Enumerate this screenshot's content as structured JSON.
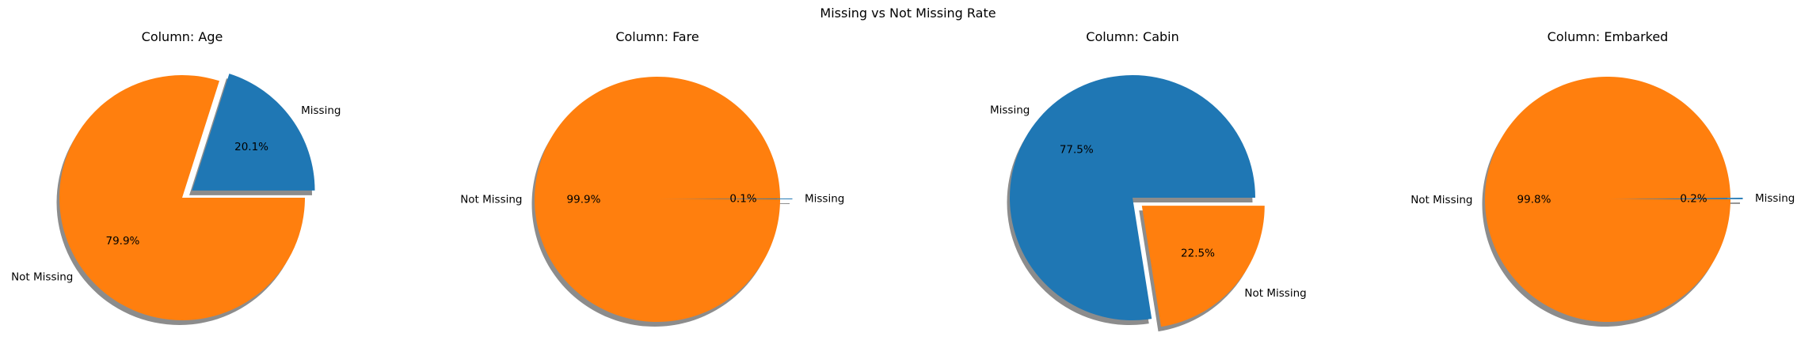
{
  "figure": {
    "title": "Missing vs Not Missing Rate"
  },
  "chart_data": [
    {
      "type": "pie",
      "title": "Column: Age",
      "labels": [
        "Missing",
        "Not Missing"
      ],
      "values": [
        20.1,
        79.9
      ],
      "autopct": [
        "20.1%",
        "79.9%"
      ],
      "colors": [
        "#1f77b4",
        "#ff7f0e"
      ],
      "explode": [
        0.1,
        0
      ],
      "shadow": true,
      "startangle": 0
    },
    {
      "type": "pie",
      "title": "Column: Fare",
      "labels": [
        "Missing",
        "Not Missing"
      ],
      "values": [
        0.1,
        99.9
      ],
      "autopct": [
        "0.1%",
        "99.9%"
      ],
      "colors": [
        "#1f77b4",
        "#ff7f0e"
      ],
      "explode": [
        0.1,
        0
      ],
      "shadow": true,
      "startangle": 0
    },
    {
      "type": "pie",
      "title": "Column: Cabin",
      "labels": [
        "Missing",
        "Not Missing"
      ],
      "values": [
        77.5,
        22.5
      ],
      "autopct": [
        "77.5%",
        "22.5%"
      ],
      "colors": [
        "#1f77b4",
        "#ff7f0e"
      ],
      "explode": [
        0,
        0.1
      ],
      "shadow": true,
      "startangle": 0
    },
    {
      "type": "pie",
      "title": "Column: Embarked",
      "labels": [
        "Missing",
        "Not Missing"
      ],
      "values": [
        0.2,
        99.8
      ],
      "autopct": [
        "0.2%",
        "99.8%"
      ],
      "colors": [
        "#1f77b4",
        "#ff7f0e"
      ],
      "explode": [
        0.1,
        0
      ],
      "shadow": true,
      "startangle": 0
    }
  ]
}
